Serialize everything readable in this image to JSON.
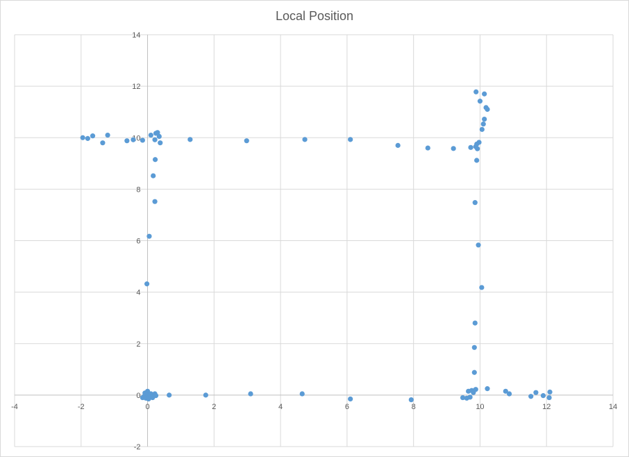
{
  "chart_data": {
    "type": "scatter",
    "title": "Local Position",
    "xlabel": "",
    "ylabel": "",
    "xlim": [
      -4,
      14
    ],
    "ylim": [
      -2,
      14
    ],
    "xticks": [
      -4,
      -2,
      0,
      2,
      4,
      6,
      8,
      10,
      12,
      14
    ],
    "yticks": [
      -2,
      0,
      2,
      4,
      6,
      8,
      10,
      12,
      14
    ],
    "grid": true,
    "legend": "none",
    "marker_color": "#5B9BD5",
    "series": [
      {
        "points": [
          [
            -1.95,
            10.0
          ],
          [
            -1.8,
            9.97
          ],
          [
            -1.65,
            10.07
          ],
          [
            -1.35,
            9.8
          ],
          [
            -1.2,
            10.1
          ],
          [
            -0.62,
            9.88
          ],
          [
            -0.43,
            9.92
          ],
          [
            -0.15,
            9.9
          ],
          [
            0.1,
            10.1
          ],
          [
            0.25,
            10.17
          ],
          [
            0.3,
            10.2
          ],
          [
            0.35,
            10.05
          ],
          [
            0.38,
            9.8
          ],
          [
            0.22,
            9.92
          ],
          [
            1.28,
            9.93
          ],
          [
            2.98,
            9.88
          ],
          [
            4.73,
            9.93
          ],
          [
            6.1,
            9.93
          ],
          [
            7.53,
            9.7
          ],
          [
            8.43,
            9.6
          ],
          [
            9.2,
            9.58
          ],
          [
            9.72,
            9.62
          ],
          [
            9.87,
            9.65
          ],
          [
            9.9,
            9.75
          ],
          [
            9.97,
            9.82
          ],
          [
            9.92,
            9.57
          ],
          [
            9.9,
            9.12
          ],
          [
            9.88,
            11.78
          ],
          [
            10.13,
            11.7
          ],
          [
            10.0,
            11.42
          ],
          [
            10.18,
            11.17
          ],
          [
            10.22,
            11.1
          ],
          [
            10.13,
            10.72
          ],
          [
            10.1,
            10.53
          ],
          [
            10.06,
            10.32
          ],
          [
            0.23,
            9.15
          ],
          [
            0.17,
            8.52
          ],
          [
            0.22,
            7.52
          ],
          [
            0.05,
            6.17
          ],
          [
            -0.02,
            4.32
          ],
          [
            9.85,
            7.48
          ],
          [
            9.95,
            5.83
          ],
          [
            10.05,
            4.18
          ],
          [
            9.85,
            2.8
          ],
          [
            9.83,
            1.85
          ],
          [
            9.83,
            0.88
          ],
          [
            9.87,
            0.22
          ],
          [
            -0.15,
            -0.1
          ],
          [
            -0.1,
            -0.05
          ],
          [
            -0.05,
            -0.12
          ],
          [
            0.0,
            0.15
          ],
          [
            0.02,
            0.0
          ],
          [
            0.05,
            -0.08
          ],
          [
            0.08,
            0.03
          ],
          [
            0.1,
            0.05
          ],
          [
            0.12,
            -0.05
          ],
          [
            0.15,
            -0.1
          ],
          [
            0.18,
            0.02
          ],
          [
            0.22,
            0.05
          ],
          [
            0.25,
            -0.02
          ],
          [
            -0.08,
            0.08
          ],
          [
            0.03,
            -0.15
          ],
          [
            0.65,
            0.0
          ],
          [
            1.75,
            0.0
          ],
          [
            3.1,
            0.05
          ],
          [
            4.65,
            0.05
          ],
          [
            6.1,
            -0.15
          ],
          [
            7.93,
            -0.18
          ],
          [
            9.48,
            -0.1
          ],
          [
            9.6,
            -0.12
          ],
          [
            9.65,
            0.15
          ],
          [
            9.7,
            -0.08
          ],
          [
            9.75,
            0.18
          ],
          [
            9.8,
            0.1
          ],
          [
            10.22,
            0.25
          ],
          [
            10.77,
            0.15
          ],
          [
            10.88,
            0.05
          ],
          [
            11.53,
            -0.05
          ],
          [
            11.68,
            0.1
          ],
          [
            11.9,
            -0.02
          ],
          [
            12.08,
            -0.1
          ],
          [
            12.1,
            0.12
          ]
        ]
      }
    ]
  }
}
